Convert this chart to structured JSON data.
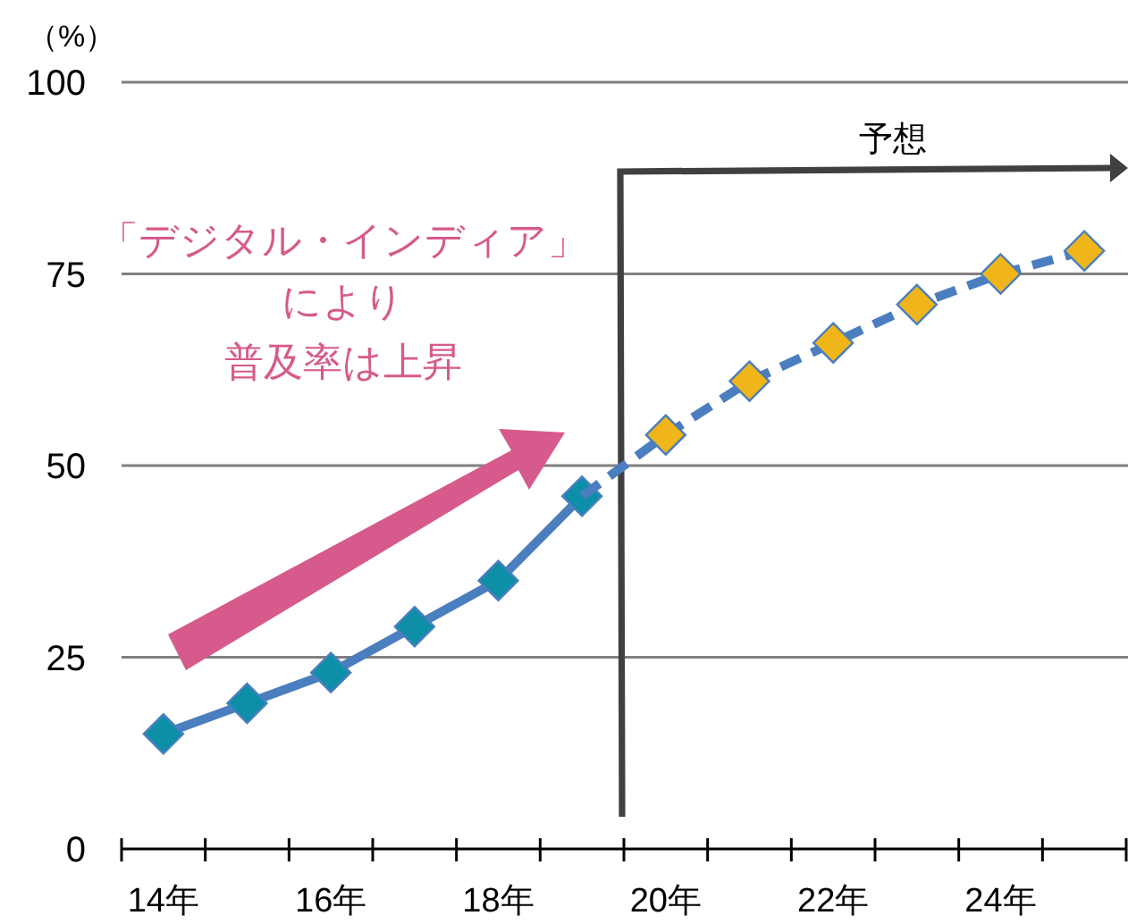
{
  "chart_data": {
    "type": "line",
    "ylabel": "（%）",
    "categories": [
      "14年",
      null,
      "16年",
      null,
      "18年",
      null,
      "20年",
      null,
      "22年",
      null,
      "24年",
      null
    ],
    "series": [
      {
        "color": "#4a7ebf",
        "line_style": "solid",
        "marker": "diamond",
        "colors": [
          "#0e8fa8",
          "#0e8fa8",
          "#0e8fa8",
          "#0e8fa8",
          "#0e8fa8",
          "#0e8fa8",
          null,
          null,
          null,
          null,
          null,
          null
        ],
        "values": [
          15,
          19,
          23,
          29,
          35,
          46,
          null,
          null,
          null,
          null,
          null,
          null
        ]
      },
      {
        "color": "#4a7ebf",
        "line_style": "dashed",
        "marker": "diamond",
        "colors": [
          null,
          null,
          null,
          null,
          null,
          null,
          "#f0b518",
          "#f0b518",
          "#f0b518",
          "#f0b518",
          "#f0b518",
          "#f0b518"
        ],
        "values": [
          null,
          null,
          null,
          null,
          null,
          46,
          54,
          61,
          66,
          71,
          75,
          78
        ]
      }
    ],
    "ylim": [
      0,
      100
    ],
    "yticks": [
      0,
      25,
      50,
      75,
      100
    ],
    "grid": "y",
    "annotations": [
      "予想",
      "「デジタル・インディア」",
      "により",
      "普及率は上昇"
    ]
  }
}
